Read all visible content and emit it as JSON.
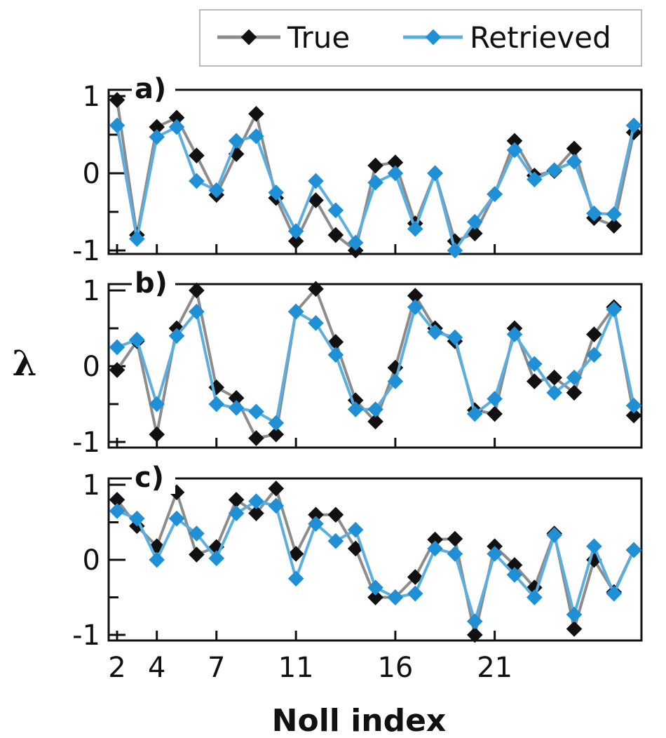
{
  "chart_data": {
    "type": "line",
    "xlabel": "Noll index",
    "ylabel": "λ",
    "x": [
      2,
      3,
      4,
      5,
      6,
      7,
      8,
      9,
      10,
      11,
      12,
      13,
      14,
      15,
      16,
      17,
      18,
      19,
      20,
      21,
      22,
      23,
      24,
      25,
      26,
      27,
      28
    ],
    "xticks": [
      2,
      4,
      7,
      11,
      16,
      21
    ],
    "xtick_labels": [
      "2",
      "4",
      "7",
      "11",
      "16",
      "21"
    ],
    "ylim": [
      -1,
      1
    ],
    "yticks": [
      1,
      0,
      -1
    ],
    "ytick_labels": [
      "1",
      "0",
      "-1"
    ],
    "legend": {
      "placement": "top-right",
      "entries": [
        "True",
        "Retrieved"
      ]
    },
    "colors": {
      "True": "#111111",
      "True_line": "#8c8c8c",
      "Retrieved": "#1f8fd6",
      "Retrieved_line": "#5aaee0"
    },
    "panels": [
      {
        "label": "a)",
        "series": [
          {
            "name": "True",
            "values": [
              0.95,
              -0.8,
              0.6,
              0.72,
              0.23,
              -0.28,
              0.25,
              0.77,
              -0.32,
              -0.88,
              -0.35,
              -0.8,
              -1.0,
              0.1,
              0.14,
              -0.65,
              0.0,
              -0.88,
              -0.78,
              -0.27,
              0.42,
              -0.03,
              0.03,
              0.32,
              -0.58,
              -0.68,
              0.53
            ]
          },
          {
            "name": "Retrieved",
            "values": [
              0.62,
              -0.85,
              0.47,
              0.6,
              -0.1,
              -0.22,
              0.42,
              0.48,
              -0.25,
              -0.75,
              -0.1,
              -0.48,
              -0.9,
              -0.12,
              0.0,
              -0.72,
              0.0,
              -1.0,
              -0.63,
              -0.27,
              0.3,
              -0.08,
              0.04,
              0.15,
              -0.52,
              -0.53,
              0.62
            ]
          }
        ]
      },
      {
        "label": "b)",
        "series": [
          {
            "name": "True",
            "values": [
              -0.05,
              0.33,
              -0.9,
              0.5,
              1.0,
              -0.28,
              -0.42,
              -0.95,
              -0.9,
              0.72,
              1.02,
              0.32,
              -0.45,
              -0.73,
              -0.02,
              0.93,
              0.5,
              0.33,
              -0.58,
              -0.63,
              0.5,
              -0.2,
              -0.15,
              -0.35,
              0.42,
              0.78,
              -0.65
            ]
          },
          {
            "name": "Retrieved",
            "values": [
              0.25,
              0.35,
              -0.5,
              0.4,
              0.72,
              -0.5,
              -0.55,
              -0.6,
              -0.75,
              0.72,
              0.57,
              0.15,
              -0.57,
              -0.57,
              -0.2,
              0.78,
              0.45,
              0.38,
              -0.63,
              -0.43,
              0.42,
              0.03,
              -0.35,
              -0.15,
              0.15,
              0.75,
              -0.52
            ]
          }
        ]
      },
      {
        "label": "c)",
        "series": [
          {
            "name": "True",
            "values": [
              0.8,
              0.45,
              0.18,
              0.9,
              0.07,
              0.17,
              0.8,
              0.62,
              0.95,
              0.08,
              0.6,
              0.6,
              0.15,
              -0.5,
              -0.5,
              -0.23,
              0.27,
              0.28,
              -1.0,
              0.18,
              -0.07,
              -0.37,
              0.35,
              -0.92,
              0.0,
              -0.43,
              0.13
            ]
          },
          {
            "name": "Retrieved",
            "values": [
              0.65,
              0.55,
              0.0,
              0.55,
              0.35,
              0.02,
              0.62,
              0.78,
              0.72,
              -0.25,
              0.48,
              0.25,
              0.4,
              -0.37,
              -0.5,
              -0.45,
              0.15,
              0.08,
              -0.82,
              0.08,
              -0.2,
              -0.5,
              0.33,
              -0.73,
              0.18,
              -0.45,
              0.13
            ]
          }
        ]
      }
    ]
  }
}
